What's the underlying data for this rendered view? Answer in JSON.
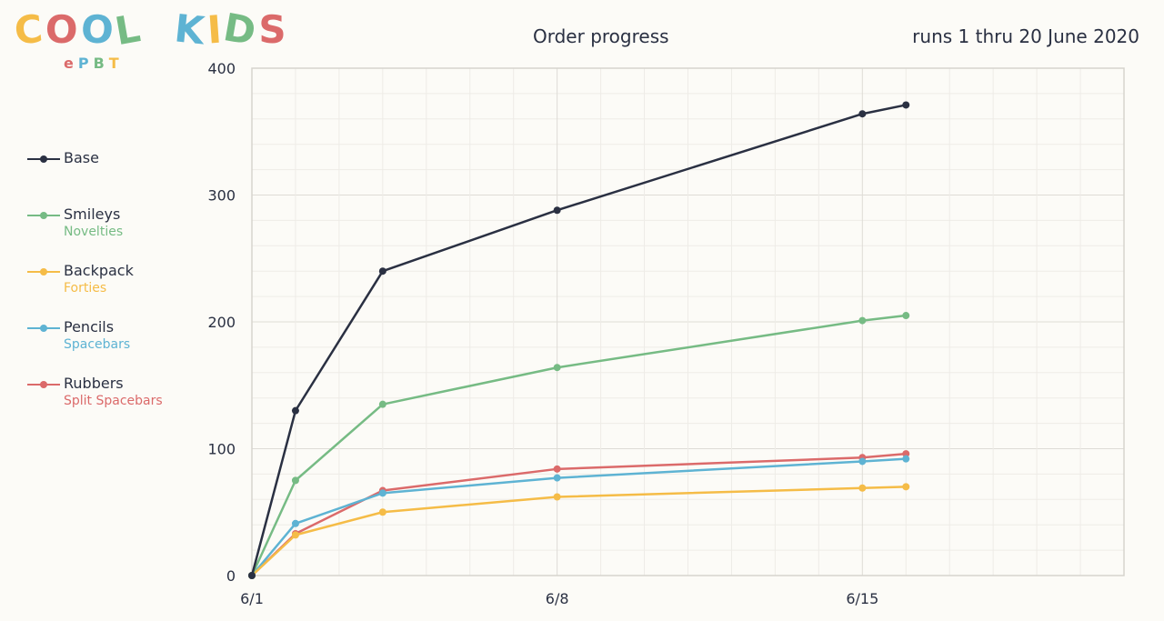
{
  "logo": {
    "letters": [
      {
        "ch": "C",
        "color": "#f5bc47"
      },
      {
        "ch": "O",
        "color": "#db6a6a"
      },
      {
        "ch": "O",
        "color": "#5eb3d3"
      },
      {
        "ch": "L",
        "color": "#76bb84"
      },
      {
        "ch": " ",
        "color": "#000000"
      },
      {
        "ch": "K",
        "color": "#5eb3d3"
      },
      {
        "ch": "I",
        "color": "#f5bc47"
      },
      {
        "ch": "D",
        "color": "#76bb84"
      },
      {
        "ch": "S",
        "color": "#db6a6a"
      }
    ],
    "sub_letters": [
      {
        "ch": "e",
        "color": "#db6a6a"
      },
      {
        "ch": "P",
        "color": "#5eb3d3"
      },
      {
        "ch": "B",
        "color": "#76bb84"
      },
      {
        "ch": "T",
        "color": "#f5bc47"
      }
    ]
  },
  "chart_data": {
    "type": "line",
    "title": "Order progress",
    "subtitle": "runs 1 thru 20 June 2020",
    "xlabel": "",
    "ylabel": "",
    "x": [
      "2020-06-01",
      "2020-06-02",
      "2020-06-04",
      "2020-06-08",
      "2020-06-15",
      "2020-06-16"
    ],
    "xlim": [
      "2020-06-01",
      "2020-06-21"
    ],
    "ylim": [
      0,
      400
    ],
    "x_ticks": [
      "6/1",
      "6/8",
      "6/15"
    ],
    "y_ticks": [
      0,
      100,
      200,
      300,
      400
    ],
    "grid": true,
    "legend_position": "left",
    "series": [
      {
        "name": "Base",
        "sublabel": "",
        "color": "#2a3042",
        "values": [
          0,
          130,
          240,
          288,
          364,
          371
        ]
      },
      {
        "name": "Smileys",
        "sublabel": "Novelties",
        "color": "#76bb84",
        "values": [
          0,
          75,
          135,
          164,
          201,
          205
        ]
      },
      {
        "name": "Backpack",
        "sublabel": "Forties",
        "color": "#f5bc47",
        "values": [
          0,
          32,
          50,
          62,
          69,
          70
        ]
      },
      {
        "name": "Pencils",
        "sublabel": "Spacebars",
        "color": "#5eb3d3",
        "values": [
          0,
          41,
          65,
          77,
          90,
          92
        ]
      },
      {
        "name": "Rubbers",
        "sublabel": "Split Spacebars",
        "color": "#db6a6a",
        "values": [
          0,
          33,
          67,
          84,
          93,
          96
        ]
      }
    ]
  }
}
